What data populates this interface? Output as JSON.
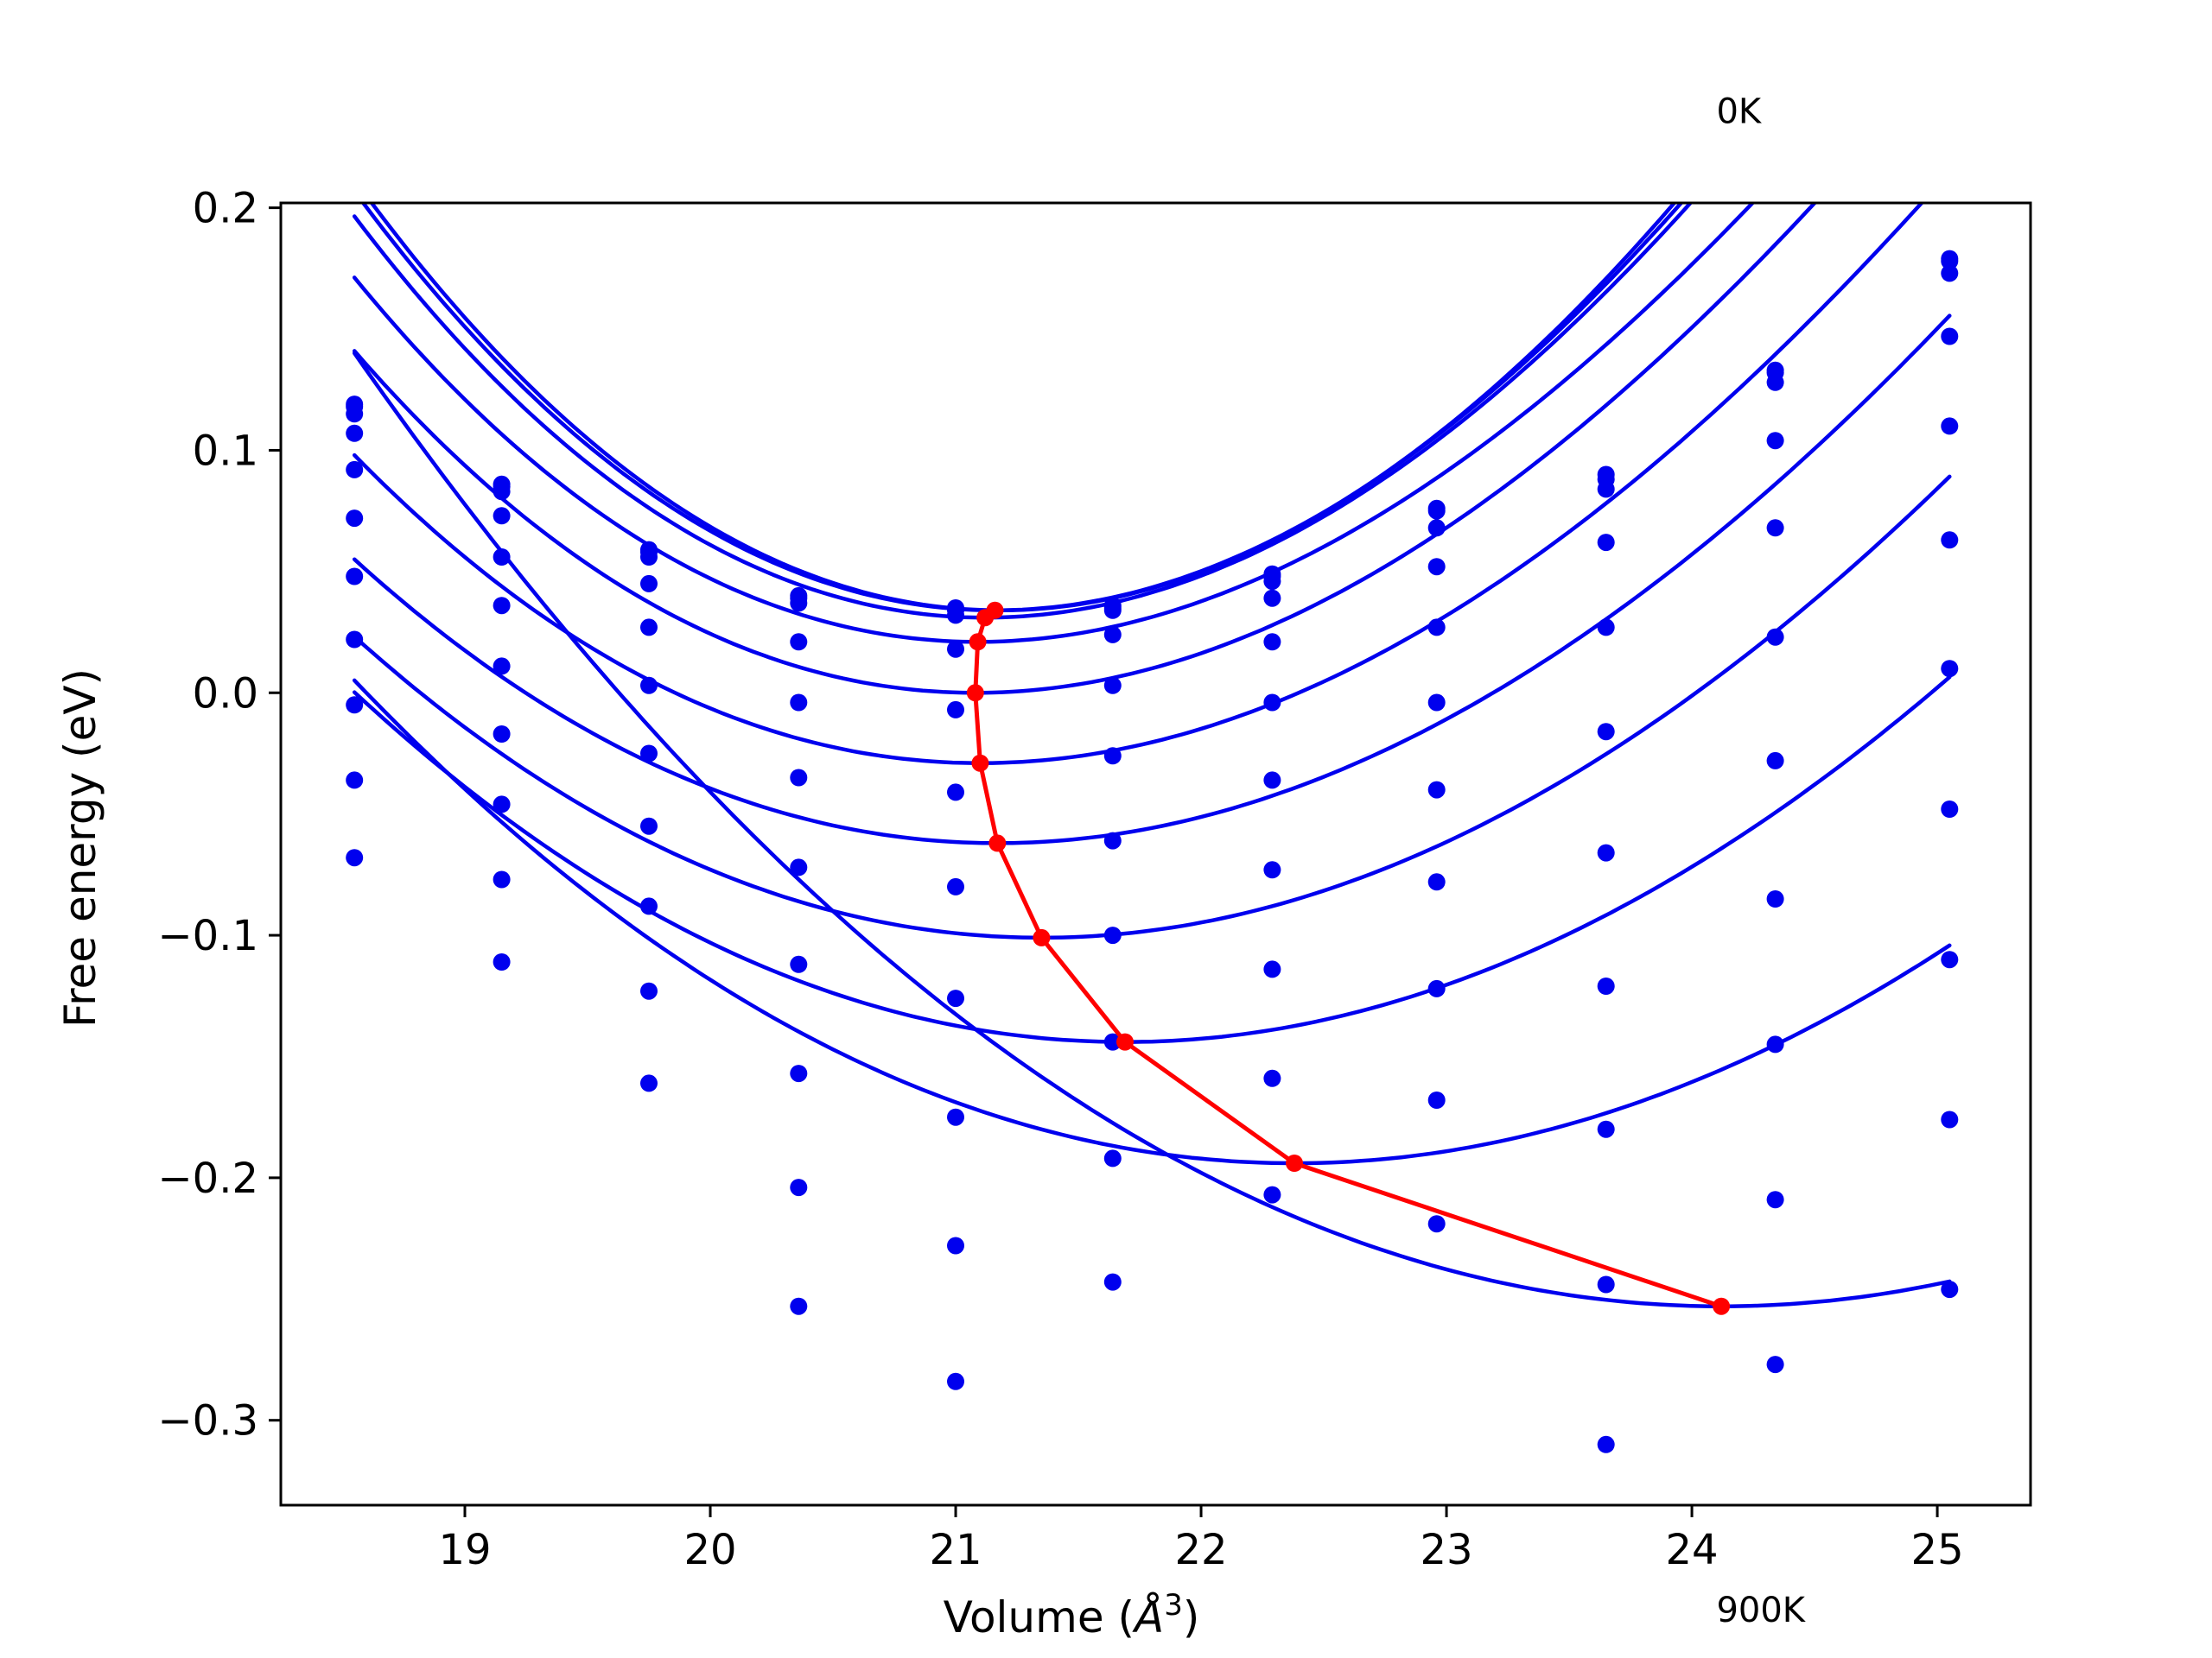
{
  "chart_data": {
    "type": "scatter",
    "title": "",
    "xlabel": "Volume",
    "xlabel_unit": "Å",
    "xlabel_unit_superscript": "3",
    "ylabel": "Free energy (eV)",
    "xlim": [
      18.25,
      25.38
    ],
    "ylim": [
      -0.335,
      0.202
    ],
    "xticks": [
      19,
      20,
      21,
      22,
      23,
      24,
      25
    ],
    "xtick_labels": [
      "19",
      "20",
      "21",
      "22",
      "23",
      "24",
      "25"
    ],
    "yticks": [
      0.2,
      0.1,
      0.0,
      -0.1,
      -0.2,
      -0.3
    ],
    "ytick_labels": [
      "0.2",
      "0.1",
      "0.0",
      "−0.1",
      "−0.2",
      "−0.3"
    ],
    "grid": false,
    "legend": false,
    "annotations": [
      {
        "text": "0K",
        "x": 24.1,
        "y": 0.235
      },
      {
        "text": "900K",
        "x": 24.1,
        "y": -0.383
      }
    ],
    "colors": {
      "data": "#0000ee",
      "minima": "#ff0000",
      "axes": "#000000"
    },
    "fit_x_range": [
      18.55,
      25.05
    ],
    "volumes": [
      18.55,
      19.15,
      19.75,
      20.36,
      21.0,
      21.64,
      22.29,
      22.96,
      23.65,
      24.34,
      25.05
    ],
    "series": [
      {
        "points": [
          0.119,
          0.086,
          0.059,
          0.04,
          0.035,
          0.035,
          0.049,
          0.076,
          0.09,
          0.133,
          0.179
        ],
        "fit": {
          "min_x": 21.18,
          "min_y": 0.034,
          "a": 0.024,
          "b": 0.00064
        }
      },
      {
        "points": [
          0.118,
          0.085,
          0.058,
          0.039,
          0.034,
          0.036,
          0.048,
          0.075,
          0.088,
          0.132,
          0.178
        ],
        "fit": {
          "min_x": 21.16,
          "min_y": 0.034,
          "a": 0.0235,
          "b": 0.00072
        }
      },
      {
        "points": [
          0.115,
          0.083,
          0.056,
          0.037,
          0.032,
          0.034,
          0.046,
          0.068,
          0.084,
          0.128,
          0.173
        ],
        "fit": {
          "min_x": 21.12,
          "min_y": 0.031,
          "a": 0.023,
          "b": 0.0008
        }
      },
      {
        "points": [
          0.107,
          0.073,
          0.045,
          0.021,
          0.018,
          0.024,
          0.039,
          0.052,
          0.062,
          0.104,
          0.147
        ],
        "fit": {
          "min_x": 21.09,
          "min_y": 0.021,
          "a": 0.021,
          "b": 0.0009
        }
      },
      {
        "points": [
          0.092,
          0.056,
          0.027,
          -0.004,
          -0.007,
          0.003,
          0.021,
          0.027,
          0.027,
          0.068,
          0.11
        ],
        "fit": {
          "min_x": 21.08,
          "min_y": 0.0,
          "a": 0.02,
          "b": 0.0008
        }
      },
      {
        "points": [
          0.072,
          0.036,
          0.003,
          -0.035,
          -0.041,
          -0.026,
          -0.004,
          -0.004,
          -0.016,
          0.023,
          0.063
        ],
        "fit": {
          "min_x": 21.1,
          "min_y": -0.029,
          "a": 0.018,
          "b": 0.0006
        }
      },
      {
        "points": [
          0.048,
          0.011,
          -0.025,
          -0.072,
          -0.08,
          -0.061,
          -0.036,
          -0.04,
          -0.066,
          -0.028,
          0.01
        ],
        "fit": {
          "min_x": 21.17,
          "min_y": -0.062,
          "a": 0.016,
          "b": 0.0004
        }
      },
      {
        "points": [
          0.022,
          -0.017,
          -0.055,
          -0.112,
          -0.126,
          -0.1,
          -0.073,
          -0.078,
          -0.121,
          -0.085,
          -0.048
        ],
        "fit": {
          "min_x": 21.35,
          "min_y": -0.101,
          "a": 0.015,
          "b": 0.0003
        }
      },
      {
        "points": [
          -0.005,
          -0.046,
          -0.088,
          -0.157,
          -0.175,
          -0.144,
          -0.114,
          -0.122,
          -0.18,
          -0.145,
          -0.11
        ],
        "fit": {
          "min_x": 21.69,
          "min_y": -0.144,
          "a": 0.014,
          "b": 0.0002
        }
      },
      {
        "points": [
          -0.036,
          -0.077,
          -0.123,
          -0.204,
          -0.228,
          -0.192,
          -0.159,
          -0.168,
          -0.244,
          -0.209,
          -0.176
        ],
        "fit": {
          "min_x": 22.38,
          "min_y": -0.194,
          "a": 0.013,
          "b": 0.00015
        }
      },
      {
        "points": [
          -0.068,
          -0.111,
          -0.161,
          -0.253,
          -0.284,
          -0.243,
          -0.207,
          -0.219,
          -0.31,
          -0.277,
          -0.246
        ],
        "fit": {
          "min_x": 24.12,
          "min_y": -0.253,
          "a": 0.012,
          "b": 0.00012
        }
      }
    ],
    "minima_path": {
      "x": [
        21.16,
        21.12,
        21.09,
        21.08,
        21.1,
        21.17,
        21.35,
        21.69,
        22.38,
        24.12
      ],
      "y": [
        0.034,
        0.031,
        0.021,
        0.0,
        -0.029,
        -0.062,
        -0.101,
        -0.144,
        -0.194,
        -0.253
      ]
    }
  }
}
